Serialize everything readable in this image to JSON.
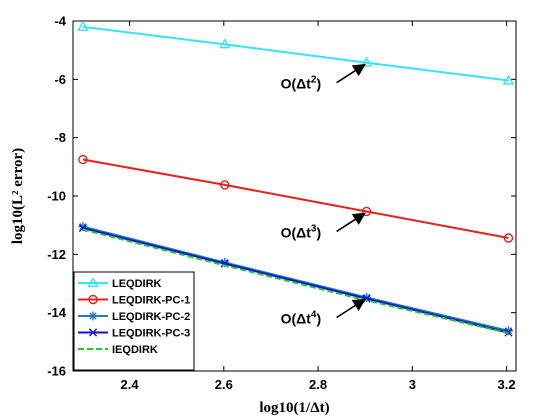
{
  "chart_data": {
    "type": "line",
    "xlabel": "log10(1/Δt)",
    "ylabel": "log10(L² error)",
    "xlim": [
      2.28,
      3.22
    ],
    "ylim": [
      -16,
      -4
    ],
    "xticks": [
      "2.4",
      "2.6",
      "2.8",
      "3",
      "3.2"
    ],
    "yticks": [
      "-4",
      "-6",
      "-8",
      "-10",
      "-12",
      "-14",
      "-16"
    ],
    "grid": false,
    "legend_position": "bottom-left",
    "x": [
      2.301,
      2.602,
      2.903,
      3.204
    ],
    "series": [
      {
        "name": "LEQDIRK",
        "values": [
          -4.2,
          -4.8,
          -5.43,
          -6.04
        ],
        "color": "#33e6f2",
        "marker": "triangle",
        "dash": ""
      },
      {
        "name": "LEQDIRK-PC-1",
        "values": [
          -8.75,
          -9.62,
          -10.53,
          -11.44
        ],
        "color": "#e8201c",
        "marker": "circle",
        "dash": ""
      },
      {
        "name": "LEQDIRK-PC-2",
        "values": [
          -11.05,
          -12.28,
          -13.48,
          -14.62
        ],
        "color": "#1f7ac0",
        "marker": "asterisk",
        "dash": ""
      },
      {
        "name": "LEQDIRK-PC-3",
        "values": [
          -11.1,
          -12.32,
          -13.52,
          -14.68
        ],
        "color": "#1010d0",
        "marker": "x",
        "dash": ""
      },
      {
        "name": "IEQDIRK",
        "values": [
          -11.15,
          -12.38,
          -13.58,
          -14.7
        ],
        "color": "#22cc22",
        "marker": "none",
        "dash": "6,3"
      }
    ],
    "annotations": [
      {
        "label": "O(Δt",
        "sup": "2",
        "close": ")",
        "arrow_to": [
          2.903,
          -5.43
        ]
      },
      {
        "label": "O(Δt",
        "sup": "3",
        "close": ")",
        "arrow_to": [
          2.903,
          -10.53
        ]
      },
      {
        "label": "O(Δt",
        "sup": "4",
        "close": ")",
        "arrow_to": [
          2.903,
          -13.48
        ]
      }
    ]
  }
}
